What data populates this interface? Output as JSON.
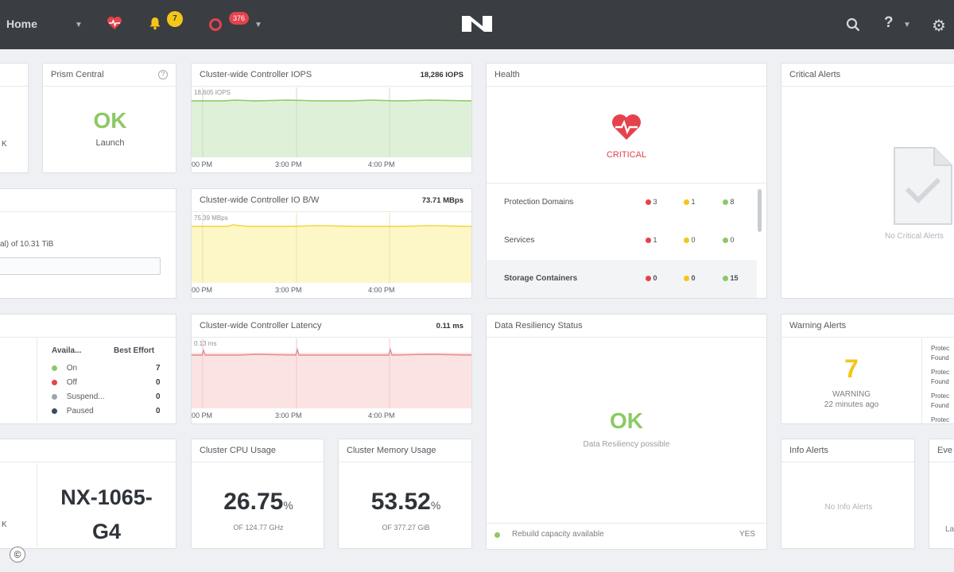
{
  "topbar": {
    "home_label": "Home",
    "alerts_count": "7",
    "events_count": "376",
    "help_label": "?"
  },
  "prism": {
    "title": "Prism Central",
    "status": "OK",
    "action": "Launch"
  },
  "partial": {
    "top_left_text": "K",
    "storage_text": "al) of 10.31 TiB",
    "hw_text": "K"
  },
  "vm": {
    "col_avail": "Availa...",
    "col_best": "Best Effort",
    "rows": [
      {
        "label": "On",
        "value": "7",
        "color": "#8cc963"
      },
      {
        "label": "Off",
        "value": "0",
        "color": "#e5434c"
      },
      {
        "label": "Suspend...",
        "value": "0",
        "color": "#9aa4b4"
      },
      {
        "label": "Paused",
        "value": "0",
        "color": "#3c4a63"
      }
    ]
  },
  "hardware": {
    "model_line1": "NX-1065-",
    "model_line2": "G4"
  },
  "iops": {
    "title": "Cluster-wide Controller IOPS",
    "value": "18,286 IOPS",
    "peak": "18,605 IOPS",
    "x0": "00 PM",
    "x1": "3:00 PM",
    "x2": "4:00 PM"
  },
  "bw": {
    "title": "Cluster-wide Controller IO B/W",
    "value": "73.71 MBps",
    "peak": "75.39 MBps",
    "x0": "00 PM",
    "x1": "3:00 PM",
    "x2": "4:00 PM"
  },
  "latency": {
    "title": "Cluster-wide Controller Latency",
    "value": "0.11 ms",
    "peak": "0.13 ms",
    "x0": "00 PM",
    "x1": "3:00 PM",
    "x2": "4:00 PM"
  },
  "cpu": {
    "title": "Cluster CPU Usage",
    "value": "26.75",
    "unit": "%",
    "sub": "OF 124.77 GHz"
  },
  "mem": {
    "title": "Cluster Memory Usage",
    "value": "53.52",
    "unit": "%",
    "sub": "OF 377.27 GiB"
  },
  "health": {
    "title": "Health",
    "status": "CRITICAL",
    "rows": [
      {
        "label": "Protection Domains",
        "red": "3",
        "yellow": "1",
        "green": "8"
      },
      {
        "label": "Services",
        "red": "1",
        "yellow": "0",
        "green": "0"
      },
      {
        "label": "Storage Containers",
        "red": "0",
        "yellow": "0",
        "green": "15"
      }
    ]
  },
  "resiliency": {
    "title": "Data Resiliency Status",
    "status": "OK",
    "sub": "Data Resiliency possible",
    "footer": "Rebuild capacity available",
    "footer_value": "YES"
  },
  "critical": {
    "title": "Critical Alerts",
    "empty": "No Critical Alerts"
  },
  "warning": {
    "title": "Warning Alerts",
    "count": "7",
    "label": "WARNING",
    "time": "22 minutes ago",
    "side": [
      "Protec",
      "Found",
      "Protec",
      "Found",
      "Protec",
      "Found",
      "Protec"
    ]
  },
  "info": {
    "title": "Info Alerts",
    "empty": "No Info Alerts"
  },
  "events": {
    "title": "Eve",
    "snippet": "La"
  },
  "colors": {
    "green": "#8cc963",
    "red": "#e5434c",
    "yellow": "#f5c518",
    "iops_fill": "#dff0d8",
    "bw_fill": "#fdf7c7",
    "lat_fill": "#fbe3e3"
  }
}
